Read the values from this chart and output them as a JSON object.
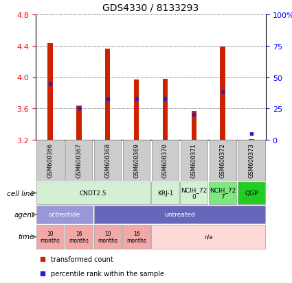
{
  "title": "GDS4330 / 8133293",
  "samples": [
    "GSM600366",
    "GSM600367",
    "GSM600368",
    "GSM600369",
    "GSM600370",
    "GSM600371",
    "GSM600372",
    "GSM600373"
  ],
  "bar_tops": [
    4.43,
    3.64,
    4.36,
    3.97,
    3.98,
    3.57,
    4.39,
    3.21
  ],
  "bar_bottom": 3.2,
  "percentile_values": [
    45,
    25,
    33,
    33,
    33,
    20,
    38,
    5
  ],
  "ylim_left": [
    3.2,
    4.8
  ],
  "ylim_right": [
    0,
    100
  ],
  "yticks_left": [
    3.2,
    3.6,
    4.0,
    4.4,
    4.8
  ],
  "yticks_right": [
    0,
    25,
    50,
    75,
    100
  ],
  "ytick_labels_right": [
    "0",
    "25",
    "50",
    "75",
    "100%"
  ],
  "bar_color": "#cc2200",
  "dot_color": "#2222cc",
  "cell_line_data": [
    {
      "label": "CNDT2.5",
      "start": 0,
      "end": 4,
      "color": "#d4f0d4"
    },
    {
      "label": "KRJ-1",
      "start": 4,
      "end": 5,
      "color": "#d4f0d4"
    },
    {
      "label": "NCIH_72\n0",
      "start": 5,
      "end": 6,
      "color": "#d4f0d4"
    },
    {
      "label": "NCIH_72\n7",
      "start": 6,
      "end": 7,
      "color": "#7de87d"
    },
    {
      "label": "QGP",
      "start": 7,
      "end": 8,
      "color": "#22cc22"
    }
  ],
  "agent_data": [
    {
      "label": "octreotide",
      "start": 0,
      "end": 2,
      "color": "#9898d8"
    },
    {
      "label": "untreated",
      "start": 2,
      "end": 8,
      "color": "#6666bb"
    }
  ],
  "time_data": [
    {
      "label": "10\nmonths",
      "start": 0,
      "end": 1,
      "color": "#f0a8a8"
    },
    {
      "label": "16\nmonths",
      "start": 1,
      "end": 2,
      "color": "#f0a8a8"
    },
    {
      "label": "10\nmonths",
      "start": 2,
      "end": 3,
      "color": "#f0a8a8"
    },
    {
      "label": "16\nmonths",
      "start": 3,
      "end": 4,
      "color": "#f0a8a8"
    },
    {
      "label": "n/a",
      "start": 4,
      "end": 8,
      "color": "#ffd8d8"
    }
  ],
  "legend_items": [
    {
      "label": "transformed count",
      "color": "#cc2200"
    },
    {
      "label": "percentile rank within the sample",
      "color": "#2222cc"
    }
  ],
  "xtick_box_color": "#cccccc",
  "xtick_box_edge": "#999999"
}
